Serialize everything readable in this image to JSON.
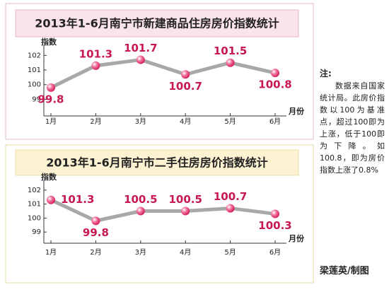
{
  "chart_data": [
    {
      "type": "line",
      "title": "2013年1-6月南宁市新建商品住房房价指数统计",
      "categories": [
        "1月",
        "2月",
        "3月",
        "4月",
        "5月",
        "6月"
      ],
      "series": [
        {
          "color": "#a8a8a8",
          "values": [
            99.8,
            101.3,
            101.7,
            100.7,
            101.5,
            100.8
          ]
        }
      ],
      "ylabel": "指数",
      "xlabel": "月份",
      "ylim": [
        98.2,
        102.5
      ],
      "yticks": [
        99,
        100,
        101,
        102
      ],
      "grid": false
    },
    {
      "type": "line",
      "title": "2013年1-6月南宁市二手住房房价指数统计",
      "categories": [
        "1月",
        "2月",
        "3月",
        "4月",
        "5月",
        "6月"
      ],
      "series": [
        {
          "color": "#a8a8a8",
          "values": [
            101.3,
            99.8,
            100.5,
            100.5,
            100.7,
            100.3
          ]
        }
      ],
      "ylabel": "指数",
      "xlabel": "月份",
      "ylim": [
        98.2,
        102.5
      ],
      "yticks": [
        99,
        100,
        101,
        102
      ],
      "grid": false
    }
  ],
  "note": {
    "title": "注:",
    "text": "数据来自国家统计局。此房价指数以100为基准点，超过100即为上涨，低于100即为下降。如100.8，即为房价指数上涨了0.8%"
  },
  "credit": "梁莲英/制图"
}
